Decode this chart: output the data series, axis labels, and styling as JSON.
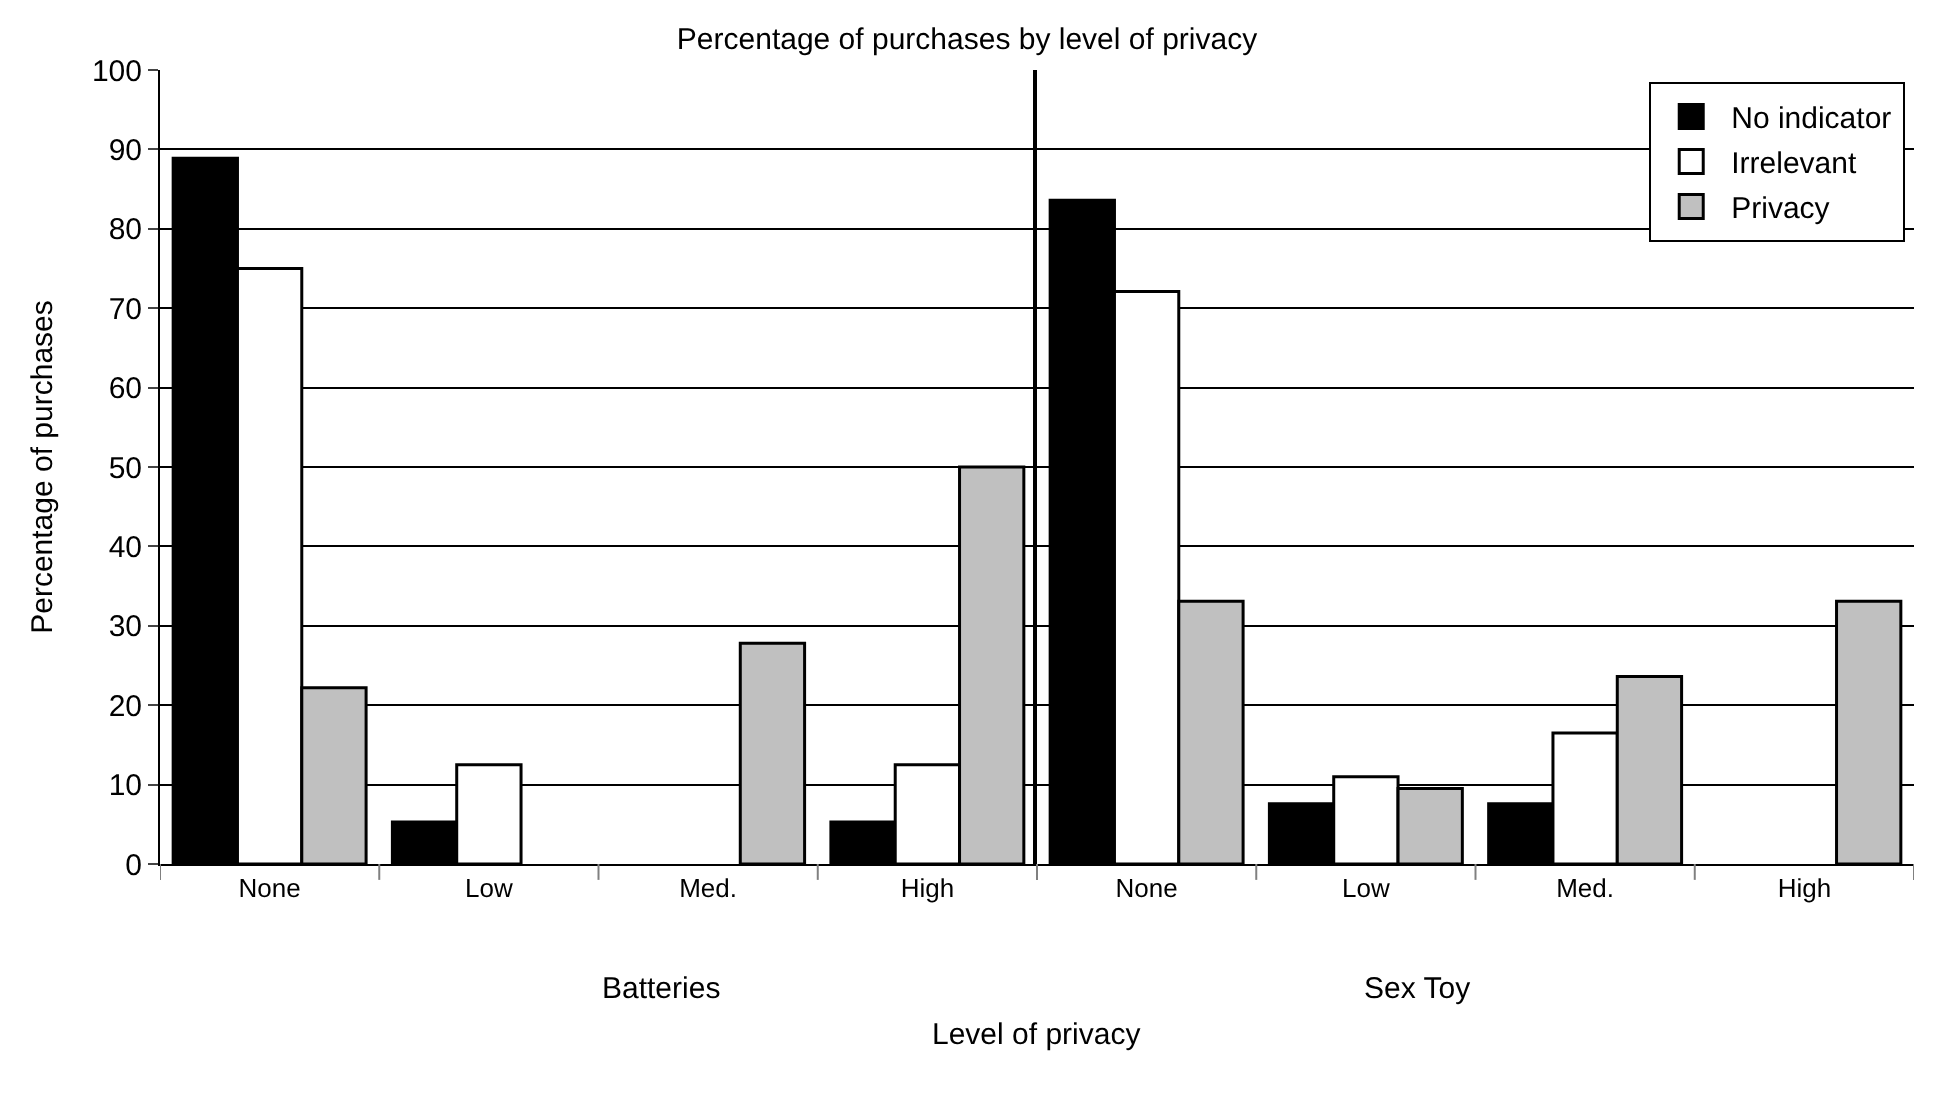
{
  "chart_data": [
    {
      "type": "bar",
      "title": "Percentage of purchases by level of privacy",
      "xlabel": "Level of privacy",
      "ylabel": "Percentage of purchases",
      "categories": [
        "None",
        "Low",
        "Med.",
        "High"
      ],
      "series": [
        {
          "color": "#000000",
          "values": [
            88.9,
            5.3,
            null,
            5.3
          ]
        },
        {
          "color": "#ffffff",
          "values": [
            75,
            12.5,
            null,
            12.5
          ]
        },
        {
          "color": "#c0c0c0",
          "values": [
            22.2,
            null,
            27.8,
            50
          ]
        }
      ],
      "ylim": [
        0,
        100
      ],
      "yticks": [
        0,
        10,
        20,
        30,
        40,
        50,
        60,
        70,
        80,
        90,
        100
      ],
      "grid": "y",
      "annotations": [
        "Batteries"
      ]
    },
    {
      "type": "bar",
      "categories": [
        "None",
        "Low",
        "Med.",
        "High"
      ],
      "series": [
        {
          "name": "No indicator",
          "color": "#000000",
          "values": [
            83.6,
            7.6,
            7.6,
            null
          ]
        },
        {
          "name": "Irrelevant",
          "color": "#ffffff",
          "values": [
            72.1,
            11.0,
            16.5,
            null
          ]
        },
        {
          "name": "Privacy",
          "color": "#c0c0c0",
          "values": [
            33.1,
            9.5,
            23.6,
            33.1
          ]
        }
      ],
      "ylim": [
        0,
        100
      ],
      "yticks": [
        0,
        10,
        20,
        30,
        40,
        50,
        60,
        70,
        80,
        90,
        100
      ],
      "grid": "y",
      "legend": "top right",
      "tick_labels": "x",
      "annotations": [
        "Sex Toy"
      ]
    }
  ]
}
